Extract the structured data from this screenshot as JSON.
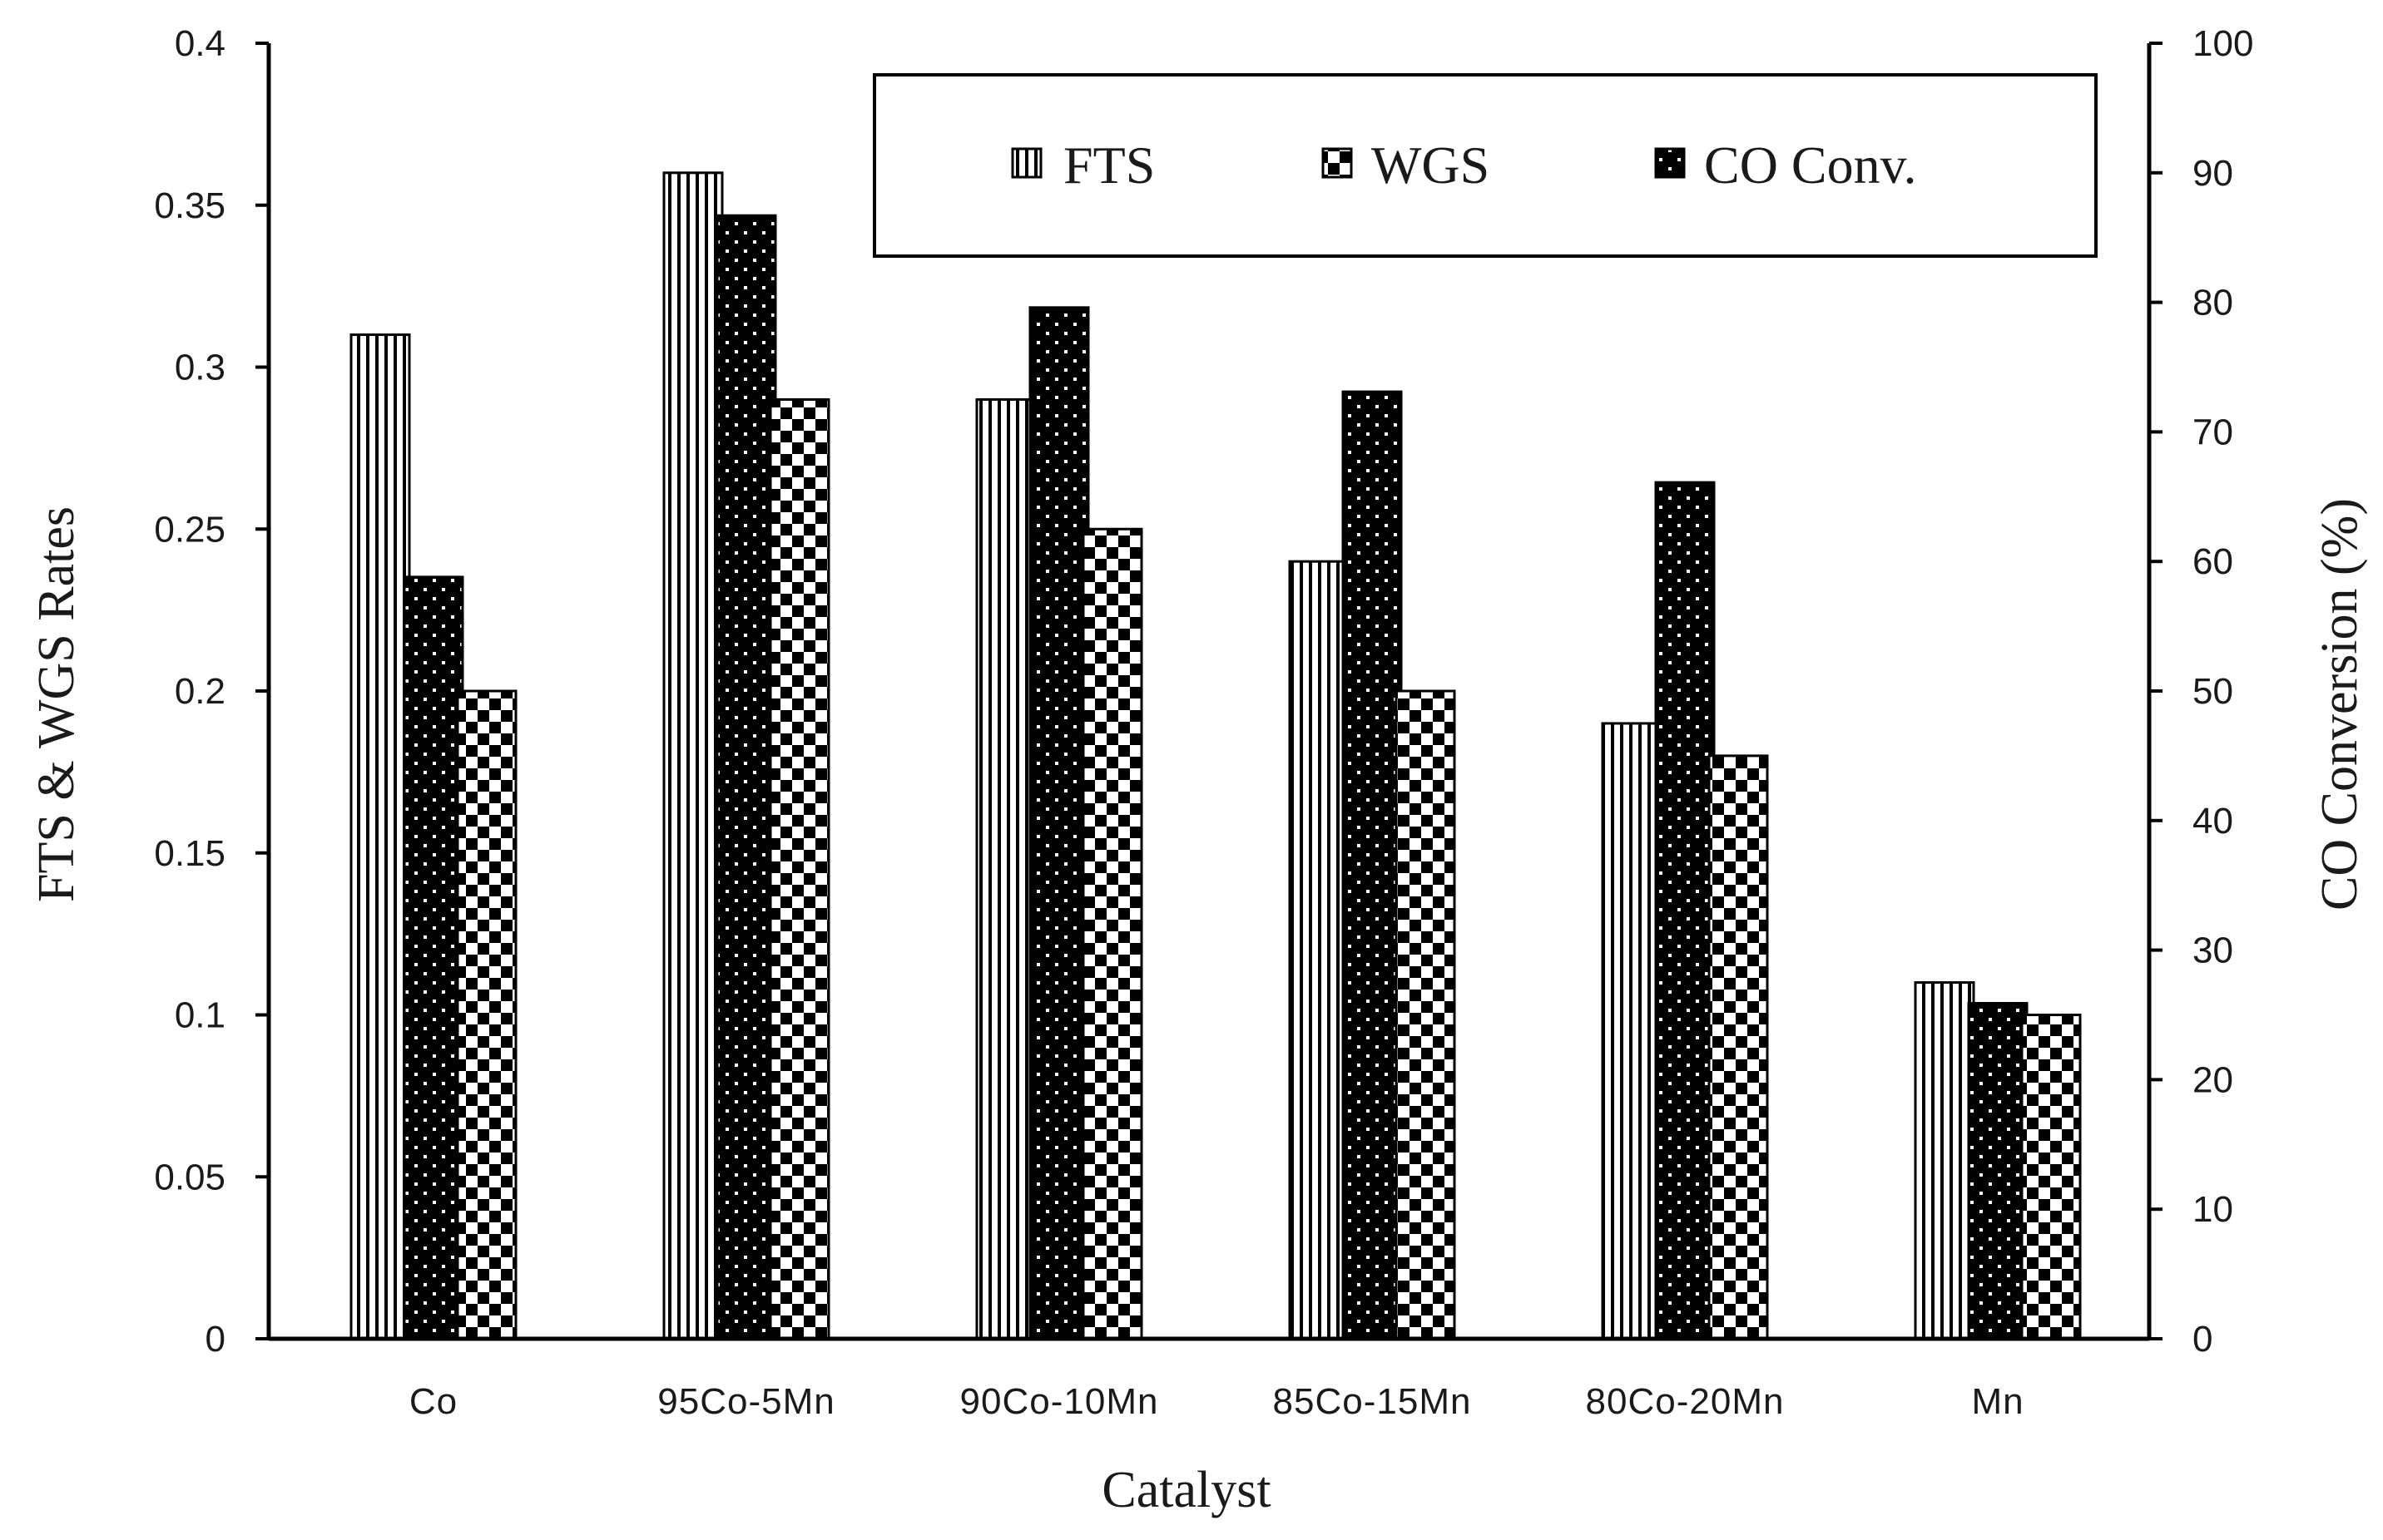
{
  "chart_data": {
    "type": "bar",
    "xlabel": "Catalyst",
    "ylabel_left": "FTS & WGS Rates",
    "ylabel_right": "CO Conversion  (%)",
    "categories": [
      "Co",
      "95Co-5Mn",
      "90Co-10Mn",
      "85Co-15Mn",
      "80Co-20Mn",
      "Mn"
    ],
    "ylim_left": [
      0,
      0.4
    ],
    "yticks_left": [
      "0",
      "0.05",
      "0.1",
      "0.15",
      "0.2",
      "0.25",
      "0.3",
      "0.35",
      "0.4"
    ],
    "ylim_right": [
      0,
      100
    ],
    "yticks_right": [
      "0",
      "10",
      "20",
      "30",
      "40",
      "50",
      "60",
      "70",
      "80",
      "90",
      "100"
    ],
    "series": [
      {
        "name": "FTS",
        "axis": "left",
        "pattern": "vertical-stripes",
        "values": [
          0.31,
          0.36,
          0.29,
          0.24,
          0.19,
          0.11
        ]
      },
      {
        "name": "WGS",
        "axis": "left",
        "pattern": "checker",
        "values": [
          0.2,
          0.29,
          0.25,
          0.2,
          0.18,
          0.1
        ]
      },
      {
        "name": "CO Conv.",
        "axis": "right",
        "pattern": "dots",
        "values": [
          58.8,
          86.7,
          79.6,
          73.1,
          66.1,
          25.9
        ]
      }
    ],
    "legend": {
      "position": "top-right",
      "order": [
        "FTS",
        "WGS",
        "CO Conv."
      ]
    },
    "grid": false
  },
  "colors": {
    "ink": "#000000",
    "background": "#ffffff"
  }
}
